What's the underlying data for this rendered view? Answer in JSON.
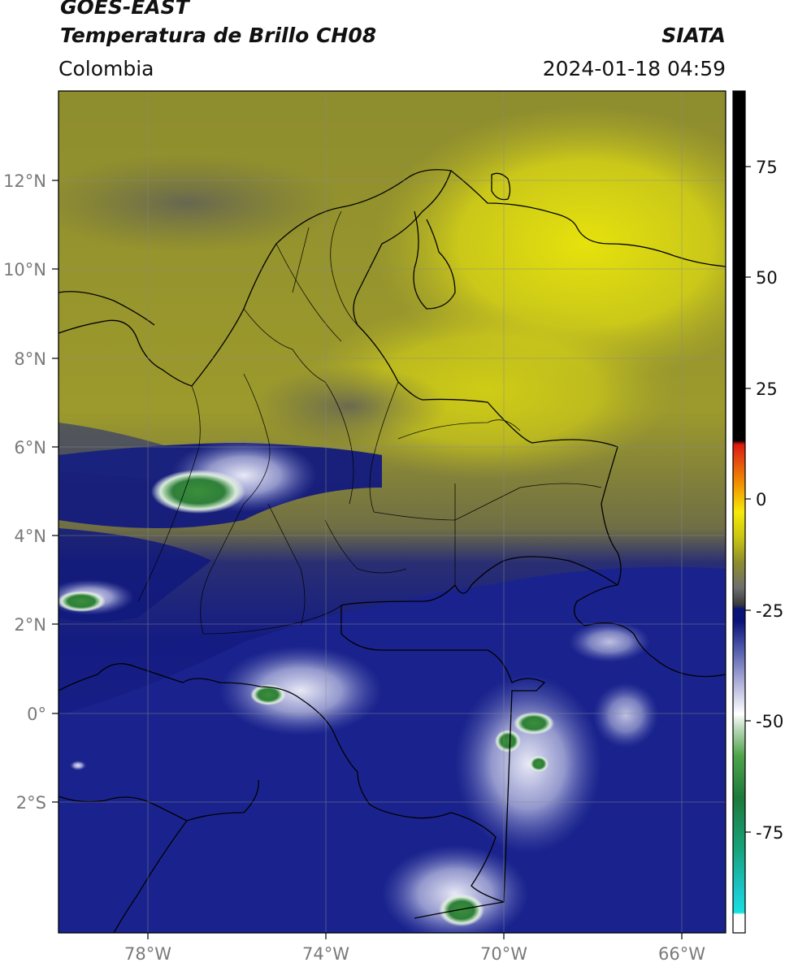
{
  "header": {
    "product": "GOES-EAST",
    "channel": "Temperatura de Brillo CH08",
    "region": "Colombia",
    "organization": "SIATA",
    "timestamp": "2024-01-18 04:59"
  },
  "map": {
    "lon_range": [
      -80,
      -65
    ],
    "lat_range": [
      -5,
      14
    ],
    "lat_ticks": [
      "12°N",
      "10°N",
      "8°N",
      "6°N",
      "4°N",
      "2°N",
      "0°",
      "2°S"
    ],
    "lon_ticks": [
      "78°W",
      "74°W",
      "70°W",
      "66°W"
    ],
    "gridlines": true
  },
  "colorbar": {
    "tick_labels": [
      "75",
      "50",
      "25",
      "0",
      "-25",
      "-50",
      "-75"
    ],
    "range": [
      -100,
      90
    ],
    "colors": {
      "black": "#000000",
      "red": "#e02010",
      "orange": "#f09000",
      "yellow": "#e8e40a",
      "olive": "#9e9c30",
      "gray": "#5a5a5a",
      "navy": "#0a137a",
      "blue": "#3b47a4",
      "lavender": "#a4a8d6",
      "white": "#ffffff",
      "green": "#2e7a2e",
      "teal": "#1ea878",
      "cyan": "#1ed8d8"
    }
  }
}
